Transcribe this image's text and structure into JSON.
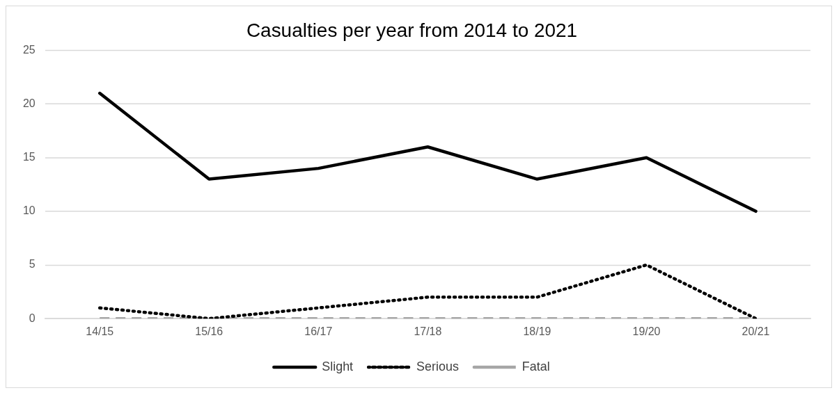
{
  "chart_data": {
    "type": "line",
    "title": "Casualties per year from 2014 to 2021",
    "categories": [
      "14/15",
      "15/16",
      "16/17",
      "17/18",
      "18/19",
      "19/20",
      "20/21"
    ],
    "series": [
      {
        "name": "Slight",
        "color": "#000000",
        "line_style": "solid",
        "values": [
          21,
          13,
          14,
          16,
          13,
          15,
          10
        ]
      },
      {
        "name": "Serious",
        "color": "#000000",
        "line_style": "dotted",
        "values": [
          1,
          0,
          1,
          2,
          2,
          5,
          0
        ]
      },
      {
        "name": "Fatal",
        "color": "#a6a6a6",
        "line_style": "dashed",
        "values": [
          0,
          0,
          0,
          0,
          0,
          0,
          0
        ]
      }
    ],
    "ylim": [
      0,
      25
    ],
    "yticks": [
      0,
      5,
      10,
      15,
      20,
      25
    ],
    "grid": "y",
    "legend": "bottom",
    "marker": "none"
  }
}
